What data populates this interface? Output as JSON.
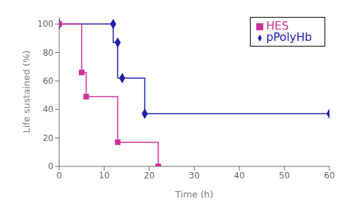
{
  "chart_data": {
    "type": "line",
    "xlabel": "Time (h)",
    "ylabel": "Life sustained (%)",
    "xlim": [
      0,
      60
    ],
    "ylim": [
      0,
      105
    ],
    "xticks": [
      0,
      10,
      20,
      30,
      40,
      50,
      60
    ],
    "yticks": [
      0,
      20,
      40,
      60,
      80,
      100
    ],
    "grid": false,
    "legend": "upper right",
    "series": [
      {
        "name": "pPolyHb",
        "color": "#2020AA",
        "marker": "diamond",
        "x": [
          0,
          12,
          12,
          13,
          13,
          14,
          19,
          19,
          60
        ],
        "values": [
          100,
          100,
          87,
          87,
          62,
          62,
          62,
          37,
          37
        ],
        "markers": {
          "x": [
            0,
            12,
            13,
            14,
            19,
            60
          ],
          "values": [
            100,
            100,
            87,
            62,
            37,
            37
          ]
        }
      },
      {
        "name": "HES",
        "color": "#CC3399",
        "marker": "square",
        "x": [
          0,
          5,
          5,
          6,
          6,
          13,
          13,
          22,
          22
        ],
        "values": [
          100,
          100,
          66,
          66,
          49,
          49,
          17,
          17,
          0
        ],
        "markers": {
          "x": [
            0,
            5,
            6,
            13,
            22
          ],
          "values": [
            100,
            66,
            49,
            17,
            0
          ]
        }
      }
    ]
  }
}
